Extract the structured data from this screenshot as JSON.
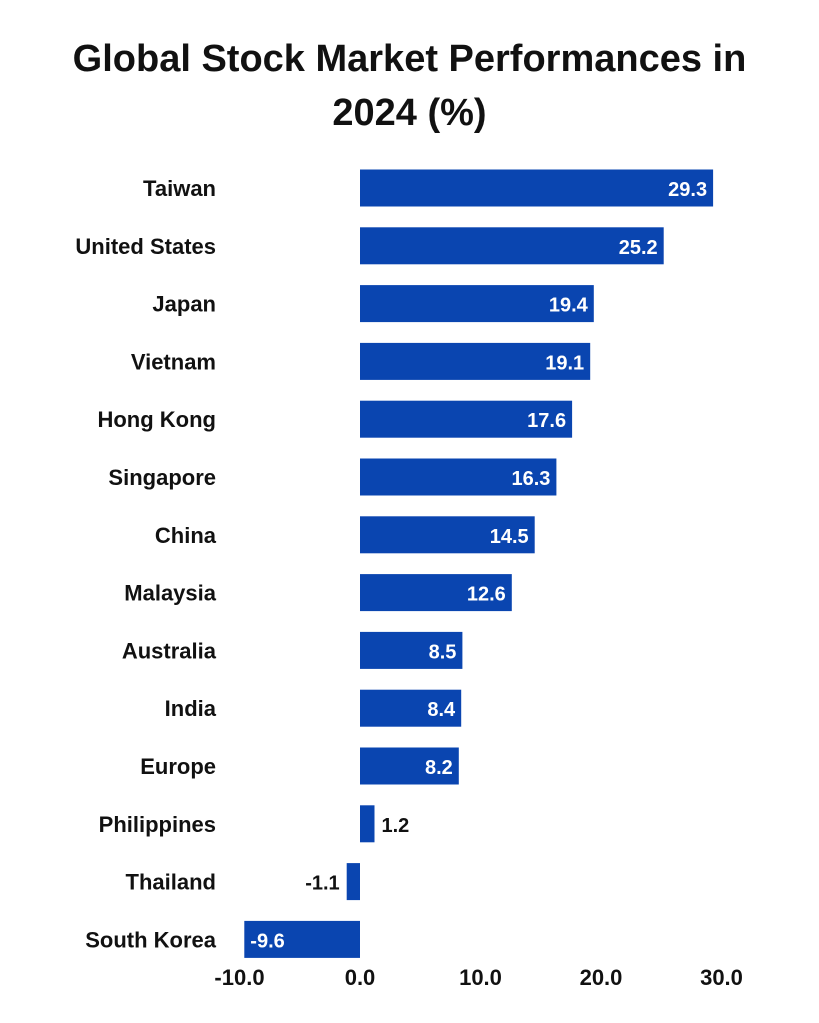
{
  "chart_data": {
    "type": "bar",
    "orientation": "horizontal",
    "title": "Global Stock Market Performances in 2024 (%)",
    "categories": [
      "Taiwan",
      "United States",
      "Japan",
      "Vietnam",
      "Hong Kong",
      "Singapore",
      "China",
      "Malaysia",
      "Australia",
      "India",
      "Europe",
      "Philippines",
      "Thailand",
      "South Korea"
    ],
    "values": [
      29.3,
      25.2,
      19.4,
      19.1,
      17.6,
      16.3,
      14.5,
      12.6,
      8.5,
      8.4,
      8.2,
      1.2,
      -1.1,
      -9.6
    ],
    "value_labels": [
      "29.3",
      "25.2",
      "19.4",
      "19.1",
      "17.6",
      "16.3",
      "14.5",
      "12.6",
      "8.5",
      "8.4",
      "8.2",
      "1.2",
      "-1.1",
      "-9.6"
    ],
    "xlim": [
      -10,
      30
    ],
    "xticks": [
      -10,
      0,
      10,
      20,
      30
    ],
    "xtick_labels": [
      "-10.0",
      "0.0",
      "10.0",
      "20.0",
      "30.0"
    ],
    "xlabel": "",
    "ylabel": "",
    "grid": false,
    "legend": "none",
    "bar_color": "#0a45b0"
  }
}
